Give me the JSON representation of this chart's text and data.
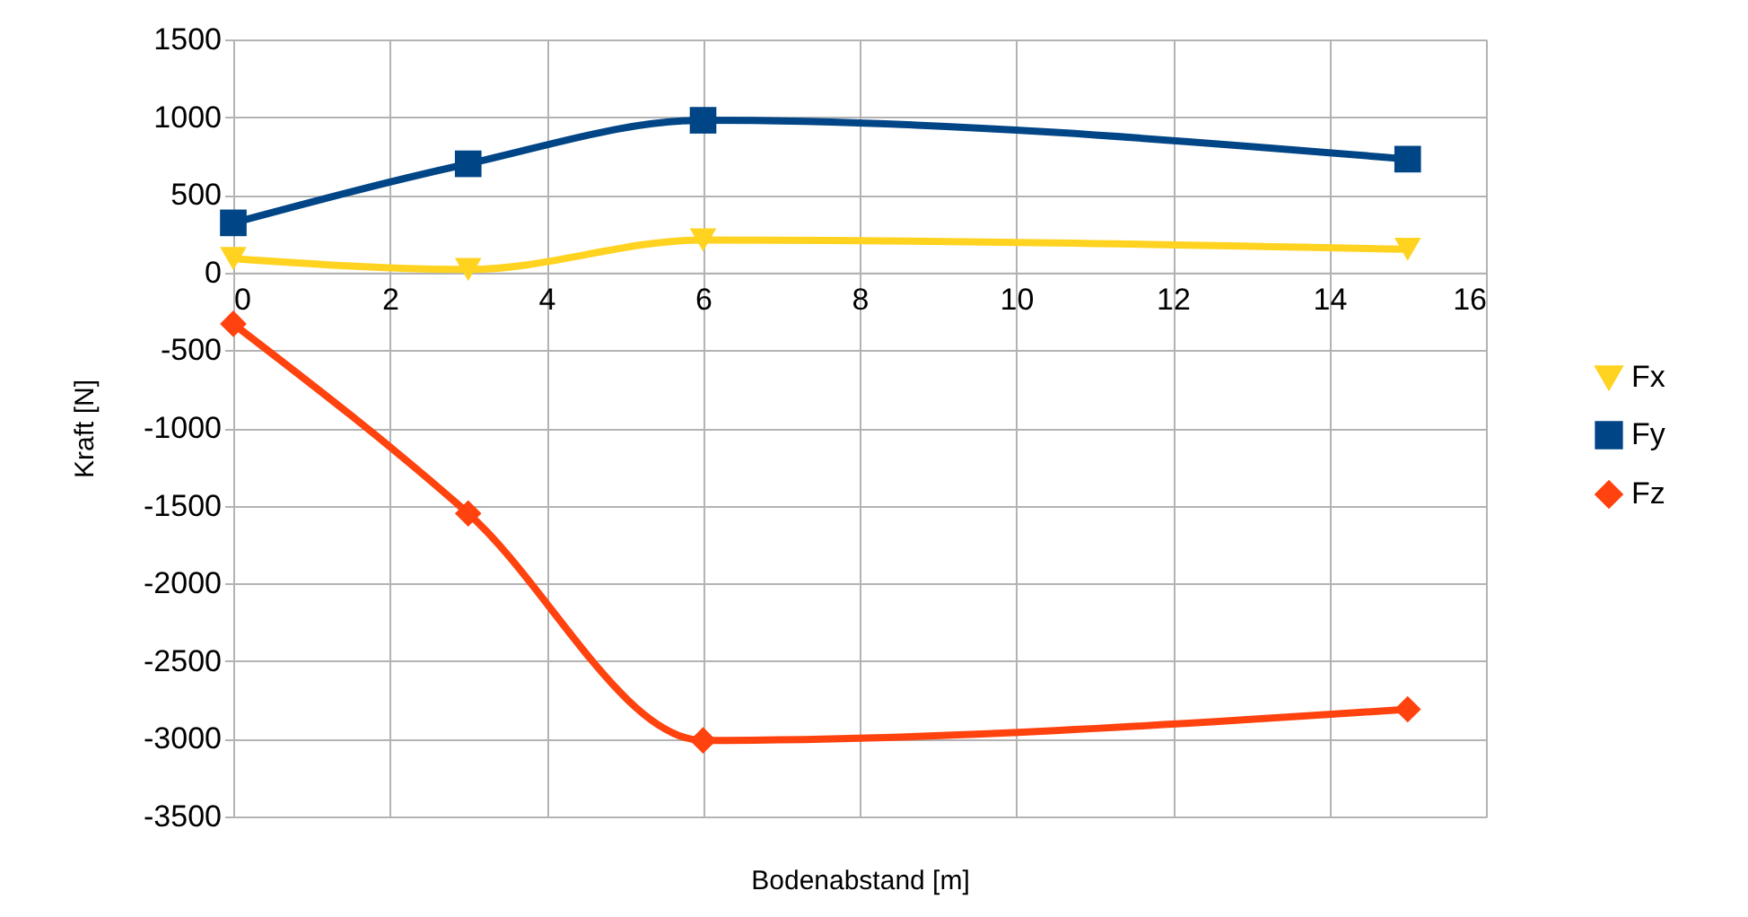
{
  "chart_data": {
    "type": "line",
    "xlabel": "Bodenabstand [m]",
    "ylabel": "Kraft [N]",
    "x": [
      0,
      3,
      6,
      15
    ],
    "series": [
      {
        "name": "Fx",
        "color": "#ffd320",
        "marker": "triangle",
        "values": [
          90,
          20,
          210,
          150
        ]
      },
      {
        "name": "Fy",
        "color": "#004586",
        "marker": "square",
        "values": [
          320,
          700,
          980,
          730
        ]
      },
      {
        "name": "Fz",
        "color": "#ff420e",
        "marker": "diamond",
        "values": [
          -330,
          -1550,
          -3010,
          -2810
        ]
      }
    ],
    "xlim": [
      0,
      16
    ],
    "xticks": [
      0,
      2,
      4,
      6,
      8,
      10,
      12,
      14,
      16
    ],
    "ylim": [
      -3500,
      1500
    ],
    "yticks": [
      -3500,
      -3000,
      -2500,
      -2000,
      -1500,
      -1000,
      -500,
      0,
      500,
      1000,
      1500
    ],
    "grid": true,
    "legend": "right"
  }
}
